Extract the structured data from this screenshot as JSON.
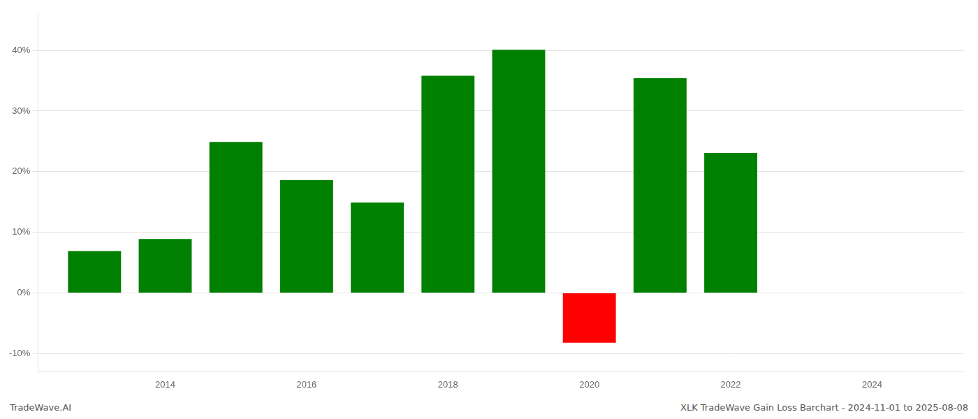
{
  "chart_data": {
    "type": "bar",
    "x": [
      2013,
      2014,
      2015,
      2016,
      2017,
      2018,
      2019,
      2020,
      2021,
      2022
    ],
    "values": [
      0.069,
      0.089,
      0.249,
      0.186,
      0.149,
      0.358,
      0.401,
      -0.082,
      0.354,
      0.231
    ],
    "colors": [
      "#008000",
      "#008000",
      "#008000",
      "#008000",
      "#008000",
      "#008000",
      "#008000",
      "#ff0000",
      "#008000",
      "#008000"
    ],
    "xlim": [
      2012.2,
      2025.3
    ],
    "xticks": [
      2014,
      2016,
      2018,
      2020,
      2022,
      2024
    ],
    "ylim": [
      -0.13,
      0.46
    ],
    "yticks": [
      {
        "value": -0.1,
        "label": "-10%"
      },
      {
        "value": 0.0,
        "label": "0%"
      },
      {
        "value": 0.1,
        "label": "10%"
      },
      {
        "value": 0.2,
        "label": "20%"
      },
      {
        "value": 0.3,
        "label": "30%"
      },
      {
        "value": 0.4,
        "label": "40%"
      }
    ],
    "grid": "y",
    "annotations": [
      "TradeWave.AI",
      "XLK TradeWave Gain Loss Barchart - 2024-11-01 to 2025-08-08"
    ]
  }
}
